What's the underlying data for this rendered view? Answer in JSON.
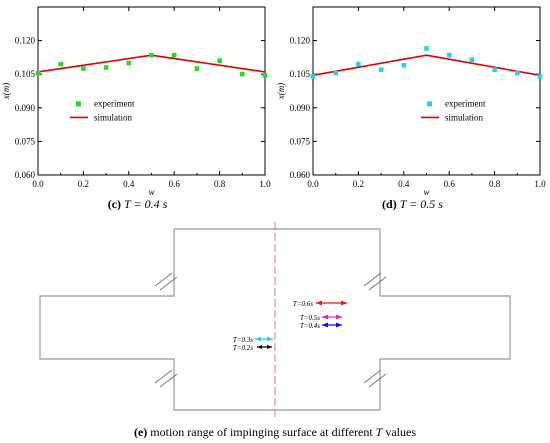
{
  "chart_data": [
    {
      "id": "c",
      "type": "scatter+line",
      "caption": {
        "letter": "(c)",
        "text": "T = 0.4 s"
      },
      "xlabel": "w",
      "ylabel": "x(m)",
      "xlim": [
        0.0,
        1.0
      ],
      "ylim": [
        0.06,
        0.135
      ],
      "xticks": [
        "0.0",
        "0.2",
        "0.4",
        "0.6",
        "0.8",
        "1.0"
      ],
      "yticks": [
        "0.060",
        "0.075",
        "0.090",
        "0.105",
        "0.120"
      ],
      "legend_position": "middle-left",
      "grid": false,
      "series": [
        {
          "name": "experiment",
          "kind": "scatter",
          "color": "#22dd22",
          "x": [
            0.0,
            0.1,
            0.2,
            0.3,
            0.4,
            0.5,
            0.6,
            0.7,
            0.8,
            0.9,
            1.0
          ],
          "y": [
            0.1055,
            0.1095,
            0.1075,
            0.108,
            0.11,
            0.1135,
            0.1135,
            0.1075,
            0.111,
            0.105,
            0.1045
          ]
        },
        {
          "name": "simulation",
          "kind": "line",
          "color": "#dd0000",
          "x": [
            0.0,
            0.5,
            1.0
          ],
          "y": [
            0.106,
            0.1135,
            0.106
          ]
        }
      ]
    },
    {
      "id": "d",
      "type": "scatter+line",
      "caption": {
        "letter": "(d)",
        "text": "T = 0.5 s"
      },
      "xlabel": "w",
      "ylabel": "x(m)",
      "xlim": [
        0.0,
        1.0
      ],
      "ylim": [
        0.06,
        0.135
      ],
      "xticks": [
        "0.0",
        "0.2",
        "0.4",
        "0.6",
        "0.8",
        "1.0"
      ],
      "yticks": [
        "0.060",
        "0.075",
        "0.090",
        "0.105",
        "0.120"
      ],
      "legend_position": "middle-right",
      "grid": false,
      "series": [
        {
          "name": "experiment",
          "kind": "scatter",
          "color": "#22d3ee",
          "x": [
            0.0,
            0.1,
            0.2,
            0.3,
            0.4,
            0.5,
            0.6,
            0.7,
            0.8,
            0.9,
            1.0
          ],
          "y": [
            0.104,
            0.1055,
            0.1095,
            0.107,
            0.109,
            0.1165,
            0.1135,
            0.1115,
            0.107,
            0.1055,
            0.104
          ]
        },
        {
          "name": "simulation",
          "kind": "line",
          "color": "#dd0000",
          "x": [
            0.0,
            0.5,
            1.0
          ],
          "y": [
            0.1045,
            0.1135,
            0.1045
          ]
        }
      ]
    }
  ],
  "diagram": {
    "caption": {
      "letter": "(e)",
      "text_before": "motion range of impinging surface at different",
      "variable": "T",
      "text_after": "values"
    },
    "centerline_color": "#e57373",
    "outline_color": "#999999",
    "motion_ranges": [
      {
        "label": "T=0.6s",
        "color": "#ee1111"
      },
      {
        "label": "T=0.5s",
        "color": "#dd22dd"
      },
      {
        "label": "T=0.4s",
        "color": "#1111dd"
      },
      {
        "label": "T=0.3s",
        "color": "#22d3ee"
      },
      {
        "label": "T=0.2s",
        "color": "#000000"
      }
    ]
  }
}
